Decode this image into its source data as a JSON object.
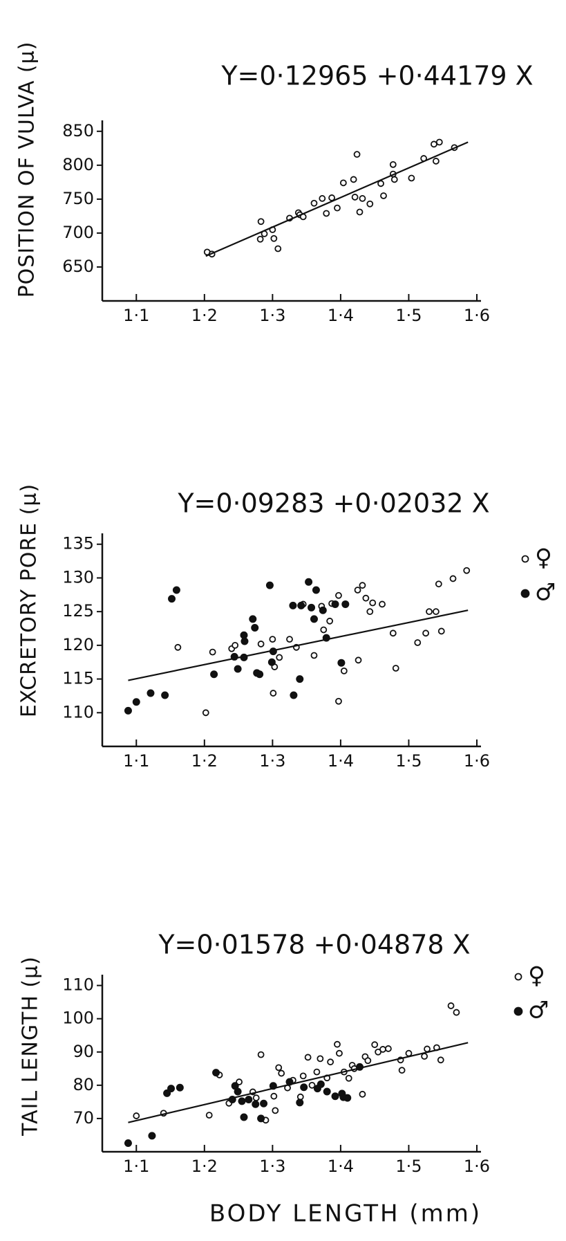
{
  "xlabel": "BODY LENGTH (mm)",
  "chart_data": [
    {
      "type": "scatter",
      "title": "Y=0·12965 +0·44179 X",
      "ylabel": "POSITION OF VULVA (μ)",
      "xlim": [
        1.05,
        1.6
      ],
      "ylim": [
        600,
        860
      ],
      "xticks": [
        {
          "value": 1.1,
          "label": "1·1"
        },
        {
          "value": 1.2,
          "label": "1·2"
        },
        {
          "value": 1.3,
          "label": "1·3"
        },
        {
          "value": 1.4,
          "label": "1·4"
        },
        {
          "value": 1.5,
          "label": "1·5"
        },
        {
          "value": 1.6,
          "label": "1·6"
        }
      ],
      "yticks": [
        650,
        700,
        750,
        800,
        850
      ],
      "series": [
        {
          "marker": "open",
          "color": "#111111",
          "x": [
            1.204,
            1.211,
            1.282,
            1.283,
            1.288,
            1.3,
            1.302,
            1.308,
            1.325,
            1.338,
            1.34,
            1.345,
            1.361,
            1.373,
            1.379,
            1.387,
            1.395,
            1.404,
            1.419,
            1.421,
            1.424,
            1.428,
            1.432,
            1.443,
            1.459,
            1.463,
            1.477,
            1.477,
            1.479,
            1.504,
            1.522,
            1.537,
            1.545,
            1.54,
            1.567
          ],
          "values": [
            672,
            669,
            691,
            717,
            699,
            705,
            692,
            677,
            722,
            730,
            727,
            724,
            744,
            751,
            729,
            752,
            737,
            774,
            779,
            753,
            816,
            731,
            751,
            743,
            773,
            755,
            801,
            787,
            779,
            781,
            810,
            831,
            834,
            806,
            826
          ]
        }
      ],
      "fit": {
        "x": [
          1.202,
          1.587
        ],
        "y": [
          666,
          834
        ]
      }
    },
    {
      "type": "scatter",
      "title": "Y=0·09283 +0·02032 X",
      "ylabel": "EXCRETORY PORE (μ)",
      "xlim": [
        1.05,
        1.6
      ],
      "ylim": [
        105,
        136
      ],
      "xticks": [
        {
          "value": 1.1,
          "label": "1·1"
        },
        {
          "value": 1.2,
          "label": "1·2"
        },
        {
          "value": 1.3,
          "label": "1·3"
        },
        {
          "value": 1.4,
          "label": "1·4"
        },
        {
          "value": 1.5,
          "label": "1·5"
        },
        {
          "value": 1.6,
          "label": "1·6"
        }
      ],
      "yticks": [
        110,
        115,
        120,
        125,
        130,
        135
      ],
      "series": [
        {
          "name": "♀",
          "marker": "open",
          "color": "#111111",
          "x": [
            1.161,
            1.202,
            1.212,
            1.24,
            1.245,
            1.283,
            1.3,
            1.301,
            1.303,
            1.31,
            1.325,
            1.335,
            1.345,
            1.361,
            1.372,
            1.375,
            1.384,
            1.387,
            1.397,
            1.397,
            1.405,
            1.425,
            1.426,
            1.432,
            1.437,
            1.443,
            1.447,
            1.461,
            1.477,
            1.481,
            1.513,
            1.525,
            1.53,
            1.54,
            1.544,
            1.548,
            1.565,
            1.585
          ],
          "values": [
            119.7,
            110,
            119,
            119.5,
            120,
            120.2,
            120.9,
            112.9,
            116.8,
            118.2,
            120.9,
            119.7,
            126.1,
            118.5,
            125.8,
            122.3,
            123.6,
            126.2,
            127.4,
            111.7,
            116.2,
            128.2,
            117.8,
            128.9,
            127,
            125,
            126.3,
            126.1,
            121.8,
            116.6,
            120.4,
            121.8,
            125,
            125,
            129.1,
            122.1,
            129.9,
            131.1
          ]
        },
        {
          "name": "♂",
          "marker": "filled",
          "color": "#111111",
          "x": [
            1.088,
            1.1,
            1.121,
            1.142,
            1.152,
            1.159,
            1.214,
            1.244,
            1.249,
            1.258,
            1.258,
            1.259,
            1.271,
            1.274,
            1.277,
            1.281,
            1.296,
            1.299,
            1.301,
            1.33,
            1.331,
            1.34,
            1.342,
            1.353,
            1.357,
            1.361,
            1.364,
            1.374,
            1.379,
            1.392,
            1.401,
            1.407
          ],
          "values": [
            110.3,
            111.6,
            112.9,
            112.6,
            126.9,
            128.2,
            115.7,
            118.3,
            116.5,
            118.2,
            121.5,
            120.6,
            123.9,
            122.6,
            115.9,
            115.7,
            128.9,
            117.5,
            119.1,
            125.9,
            112.6,
            115,
            125.9,
            129.4,
            125.6,
            123.9,
            128.2,
            125.2,
            121.1,
            126.1,
            117.4,
            126.1
          ]
        }
      ],
      "fit": {
        "x": [
          1.088,
          1.587
        ],
        "y": [
          114.8,
          125.2
        ]
      }
    },
    {
      "type": "scatter",
      "title": "Y=0·01578 +0·04878 X",
      "ylabel": "TAIL LENGTH (μ)",
      "xlim": [
        1.05,
        1.6
      ],
      "ylim": [
        60,
        112
      ],
      "xticks": [
        {
          "value": 1.1,
          "label": "1·1"
        },
        {
          "value": 1.2,
          "label": "1·2"
        },
        {
          "value": 1.3,
          "label": "1·3"
        },
        {
          "value": 1.4,
          "label": "1·4"
        },
        {
          "value": 1.5,
          "label": "1·5"
        },
        {
          "value": 1.6,
          "label": "1·6"
        }
      ],
      "yticks": [
        70,
        80,
        90,
        100,
        110
      ],
      "series": [
        {
          "name": "♀",
          "marker": "open",
          "color": "#111111",
          "x": [
            1.1,
            1.14,
            1.207,
            1.222,
            1.236,
            1.251,
            1.271,
            1.276,
            1.283,
            1.29,
            1.302,
            1.304,
            1.309,
            1.313,
            1.322,
            1.33,
            1.341,
            1.345,
            1.352,
            1.358,
            1.365,
            1.37,
            1.38,
            1.385,
            1.395,
            1.398,
            1.405,
            1.412,
            1.417,
            1.42,
            1.432,
            1.436,
            1.44,
            1.45,
            1.455,
            1.462,
            1.47,
            1.488,
            1.49,
            1.5,
            1.523,
            1.527,
            1.541,
            1.547,
            1.562,
            1.57
          ],
          "values": [
            70.8,
            71.6,
            71,
            83.1,
            74.6,
            81,
            78,
            76.2,
            89.2,
            69.5,
            76.7,
            72.4,
            85.3,
            83.6,
            79.2,
            81.5,
            76.5,
            82.8,
            88.4,
            80,
            84,
            88,
            82.2,
            87,
            92.3,
            89.6,
            84,
            82.1,
            86,
            85,
            77.3,
            88.6,
            87.4,
            92.2,
            90,
            90.8,
            91,
            87.6,
            84.5,
            89.6,
            88.7,
            90.9,
            91.3,
            87.6,
            103.9,
            101.9
          ]
        },
        {
          "name": "♂",
          "marker": "filled",
          "color": "#111111",
          "x": [
            1.088,
            1.123,
            1.145,
            1.151,
            1.164,
            1.217,
            1.241,
            1.245,
            1.249,
            1.255,
            1.258,
            1.265,
            1.275,
            1.283,
            1.287,
            1.301,
            1.325,
            1.34,
            1.346,
            1.366,
            1.371,
            1.38,
            1.392,
            1.402,
            1.404,
            1.41,
            1.428
          ],
          "values": [
            62.6,
            64.8,
            77.6,
            79,
            79.3,
            83.8,
            75.7,
            79.8,
            78.1,
            75.2,
            70.4,
            75.7,
            74.3,
            70,
            74.5,
            79.8,
            81,
            74.8,
            79.4,
            79,
            80.3,
            78.1,
            76.7,
            77.5,
            76.4,
            76.2,
            85.5
          ]
        }
      ],
      "fit": {
        "x": [
          1.088,
          1.587
        ],
        "y": [
          68.8,
          92.8
        ]
      }
    }
  ]
}
